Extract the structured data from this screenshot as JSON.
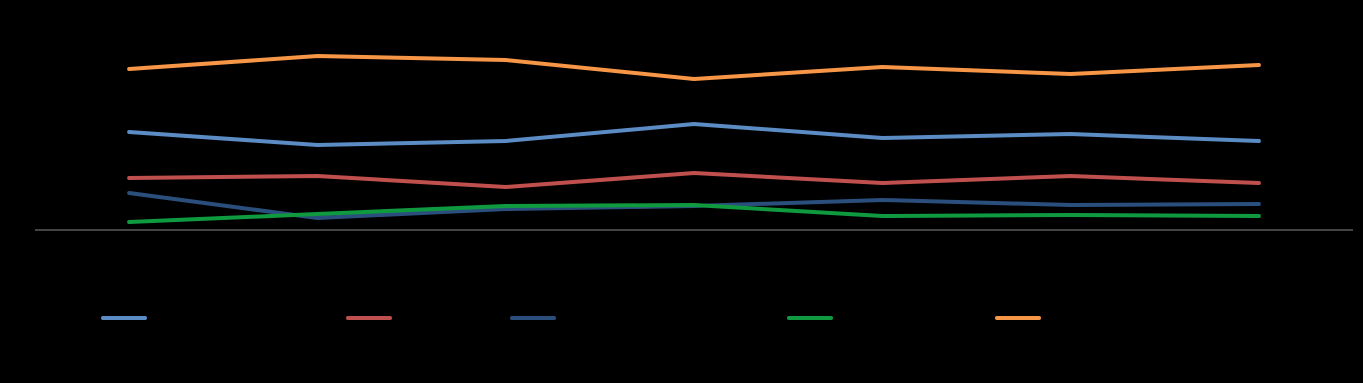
{
  "chart_data": {
    "type": "line",
    "categories": [
      null,
      null,
      null,
      null,
      null,
      null,
      null
    ],
    "ylim": [
      0,
      200
    ],
    "grid": false,
    "series": [
      {
        "color": "#5b8cc4",
        "values": [
          98,
          85,
          89,
          106,
          92,
          96,
          89
        ]
      },
      {
        "color": "#c0504d",
        "values": [
          52,
          54,
          43,
          57,
          47,
          54,
          47
        ]
      },
      {
        "color": "#2b4f7c",
        "values": [
          37,
          12,
          21,
          24,
          30,
          25,
          26
        ]
      },
      {
        "color": "#0f9a40",
        "values": [
          8,
          16,
          24,
          25,
          14,
          15,
          14
        ]
      },
      {
        "color": "#f79646",
        "values": [
          161,
          174,
          170,
          151,
          163,
          156,
          165
        ]
      }
    ]
  }
}
